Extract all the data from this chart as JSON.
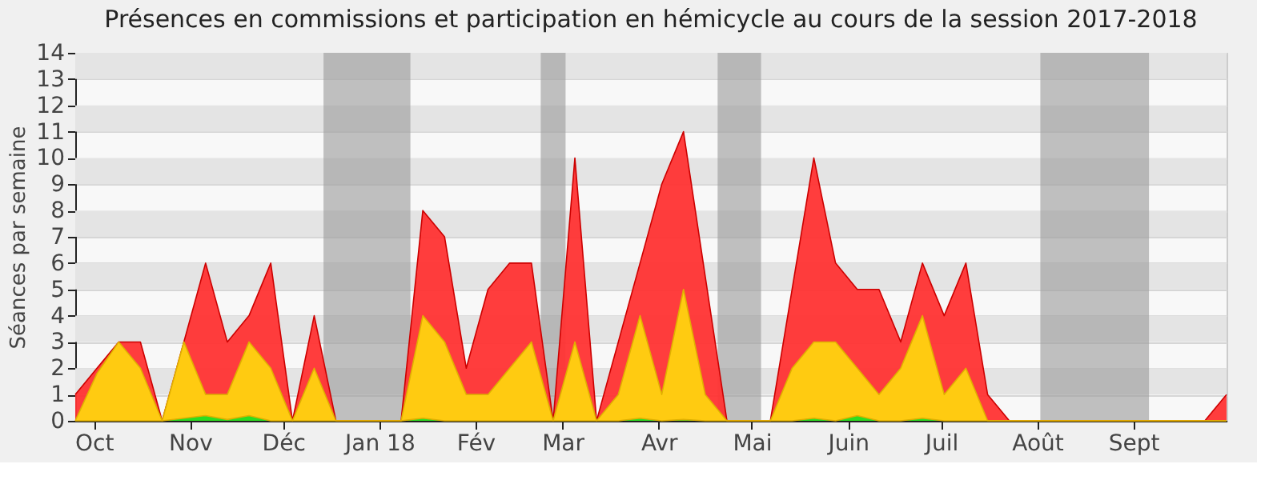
{
  "chart_data": {
    "type": "area",
    "title": "Présences en commissions et participation en hémicycle au cours de la session 2017-2018",
    "ylabel": "Séances par semaine",
    "x": [
      "2017-09-25",
      "2017-10-02",
      "2017-10-09",
      "2017-10-16",
      "2017-10-23",
      "2017-10-30",
      "2017-11-06",
      "2017-11-13",
      "2017-11-20",
      "2017-11-27",
      "2017-12-04",
      "2017-12-11",
      "2017-12-18",
      "2017-12-25",
      "2018-01-01",
      "2018-01-08",
      "2018-01-15",
      "2018-01-22",
      "2018-01-29",
      "2018-02-05",
      "2018-02-12",
      "2018-02-19",
      "2018-02-26",
      "2018-03-05",
      "2018-03-12",
      "2018-03-19",
      "2018-03-26",
      "2018-04-02",
      "2018-04-09",
      "2018-04-16",
      "2018-04-23",
      "2018-04-30",
      "2018-05-07",
      "2018-05-14",
      "2018-05-21",
      "2018-05-28",
      "2018-06-04",
      "2018-06-11",
      "2018-06-18",
      "2018-06-25",
      "2018-07-02",
      "2018-07-09",
      "2018-07-16",
      "2018-07-23",
      "2018-07-30",
      "2018-08-06",
      "2018-08-13",
      "2018-08-20",
      "2018-08-27",
      "2018-09-03",
      "2018-09-10",
      "2018-09-17",
      "2018-09-24",
      "2018-10-01"
    ],
    "series": [
      {
        "color": "#ff3333",
        "values": [
          1,
          2,
          3,
          3,
          0,
          3,
          6,
          3,
          4,
          6,
          0,
          4,
          0,
          0,
          0,
          0,
          8,
          7,
          2,
          5,
          6,
          6,
          0,
          10,
          0,
          3,
          6,
          9,
          11,
          5.5,
          0,
          0,
          0,
          5,
          10,
          6,
          5,
          5,
          3,
          6,
          4,
          6,
          1,
          0,
          0,
          0,
          0,
          0,
          0,
          0,
          0,
          0,
          0,
          1
        ]
      },
      {
        "color": "#ffd30f",
        "values": [
          0,
          1.8,
          3,
          2,
          0,
          3,
          1,
          1,
          3,
          2,
          0,
          2,
          0,
          0,
          0,
          0,
          4,
          3,
          1,
          1,
          2,
          3,
          0,
          3,
          0,
          1,
          4,
          1,
          5,
          1,
          0,
          0,
          0,
          2,
          3,
          3,
          2,
          1,
          2,
          4,
          1,
          2,
          0,
          0,
          0,
          0,
          0,
          0,
          0,
          0,
          0,
          0,
          0,
          0
        ]
      },
      {
        "color": "#22dd22",
        "values": [
          0,
          0,
          0,
          0,
          0,
          0.1,
          0.2,
          0.05,
          0.2,
          0,
          0,
          0,
          0,
          0,
          0,
          0,
          0.1,
          0,
          0,
          0,
          0,
          0,
          0,
          0,
          0,
          0,
          0.1,
          0,
          0.05,
          0,
          0,
          0,
          0,
          0,
          0.1,
          0,
          0.2,
          0,
          0,
          0.1,
          0,
          0,
          0,
          0,
          0,
          0,
          0,
          0,
          0,
          0,
          0,
          0,
          0,
          0
        ]
      }
    ],
    "xlim": [
      "2017-09-25",
      "2018-10-01"
    ],
    "xticks": [
      {
        "value": "2017-10-01",
        "label": "Oct"
      },
      {
        "value": "2017-11-01",
        "label": "Nov"
      },
      {
        "value": "2017-12-01",
        "label": "Déc"
      },
      {
        "value": "2018-01-01",
        "label": "Jan 18"
      },
      {
        "value": "2018-02-01",
        "label": "Fév"
      },
      {
        "value": "2018-03-01",
        "label": "Mar"
      },
      {
        "value": "2018-04-01",
        "label": "Avr"
      },
      {
        "value": "2018-05-01",
        "label": "Mai"
      },
      {
        "value": "2018-06-01",
        "label": "Juin"
      },
      {
        "value": "2018-07-01",
        "label": "Juil"
      },
      {
        "value": "2018-08-01",
        "label": "Août"
      },
      {
        "value": "2018-09-01",
        "label": "Sept"
      }
    ],
    "ylim": [
      0,
      14
    ],
    "yticks": [
      0,
      1,
      2,
      3,
      4,
      5,
      6,
      7,
      8,
      9,
      10,
      11,
      12,
      13,
      14
    ],
    "grid": "y",
    "bands": [
      {
        "axis": "x",
        "from": "2017-12-14",
        "to": "2018-01-11",
        "label": null,
        "color": "#999999"
      },
      {
        "axis": "x",
        "from": "2018-02-22",
        "to": "2018-03-02",
        "label": null,
        "color": "#999999"
      },
      {
        "axis": "x",
        "from": "2018-04-20",
        "to": "2018-05-04",
        "label": null,
        "color": "#999999"
      },
      {
        "axis": "x",
        "from": "2018-08-02",
        "to": "2018-09-06",
        "label": null,
        "color": "#999999"
      }
    ]
  }
}
